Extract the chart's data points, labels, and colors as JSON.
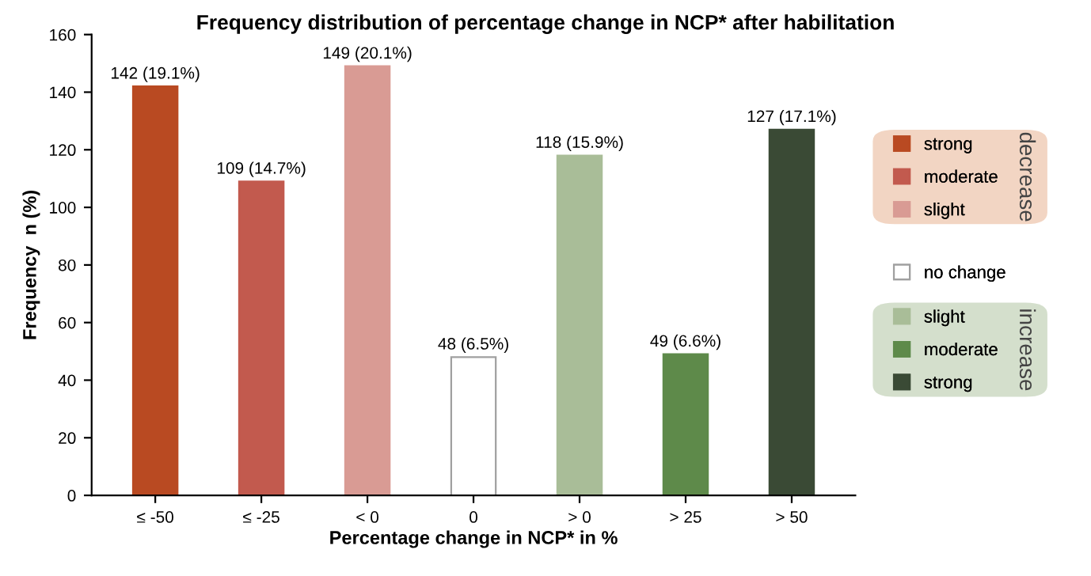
{
  "chart_data": {
    "type": "bar",
    "title": "Frequency distribution of percentage change in NCP* after habilitation",
    "xlabel": "Percentage change in NCP* in %",
    "ylabel": "Frequency  n (%)",
    "categories": [
      "≤ -50",
      "≤ -25",
      "< 0",
      "0",
      "> 0",
      "> 25",
      "> 50"
    ],
    "series": [
      {
        "name": "strong",
        "color": "#b94a22",
        "values": [
          142,
          null,
          null,
          null,
          null,
          null,
          null
        ]
      },
      {
        "name": "moderate",
        "color": "#c25a4e",
        "values": [
          null,
          109,
          null,
          null,
          null,
          null,
          null
        ]
      },
      {
        "name": "slight",
        "color": "#d99b94",
        "values": [
          null,
          null,
          149,
          null,
          null,
          null,
          null
        ]
      },
      {
        "name": "no change",
        "color": "#ffffff",
        "values": [
          null,
          null,
          null,
          48,
          null,
          null,
          null
        ]
      },
      {
        "name": "slight",
        "color": "#a9bd98",
        "values": [
          null,
          null,
          null,
          null,
          118,
          null,
          null
        ]
      },
      {
        "name": "moderate",
        "color": "#5e8a4a",
        "values": [
          null,
          null,
          null,
          null,
          null,
          49,
          null
        ]
      },
      {
        "name": "strong",
        "color": "#3a4a35",
        "values": [
          null,
          null,
          null,
          null,
          null,
          null,
          127
        ]
      }
    ],
    "value_labels": [
      "142 (19.1%)",
      "109 (14.7%)",
      "149 (20.1%)",
      "48 (6.5%)",
      "118 (15.9%)",
      "49 (6.6%)",
      "127 (17.1%)"
    ],
    "annotations": [
      "decrease",
      "increase"
    ],
    "ylim": [
      0,
      160
    ],
    "yticks": [
      0,
      20,
      40,
      60,
      80,
      100,
      120,
      140,
      160
    ],
    "grid": false,
    "legend": "right"
  }
}
